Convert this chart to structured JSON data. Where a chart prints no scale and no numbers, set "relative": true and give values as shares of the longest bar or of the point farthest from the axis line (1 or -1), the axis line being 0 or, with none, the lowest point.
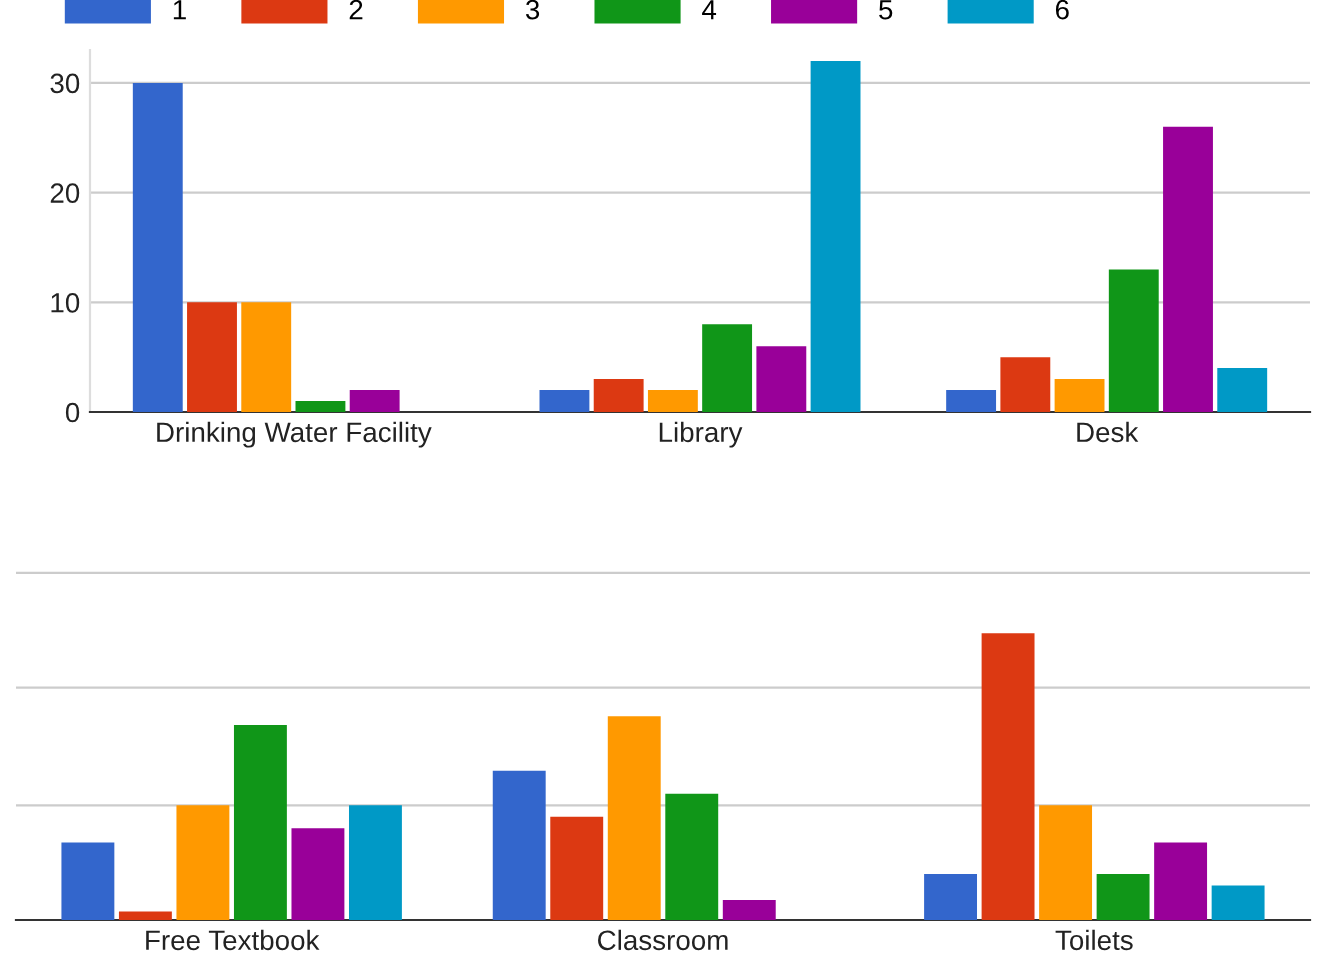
{
  "chart_data": [
    {
      "type": "bar",
      "categories": [
        "Drinking Water Facility",
        "Library",
        "Desk"
      ],
      "series": [
        {
          "name": "1",
          "color": "#3366cc",
          "values": [
            30,
            2,
            2
          ]
        },
        {
          "name": "2",
          "color": "#dc3912",
          "values": [
            10,
            3,
            5
          ]
        },
        {
          "name": "3",
          "color": "#ff9900",
          "values": [
            10,
            2,
            3
          ]
        },
        {
          "name": "4",
          "color": "#109618",
          "values": [
            1,
            8,
            13
          ]
        },
        {
          "name": "5",
          "color": "#990099",
          "values": [
            2,
            6,
            26
          ]
        },
        {
          "name": "6",
          "color": "#0099c6",
          "values": [
            0,
            32,
            4
          ]
        }
      ],
      "ylim": [
        0,
        33
      ],
      "yticks": [
        0,
        10,
        20,
        30
      ],
      "grid": "y",
      "legend": "top left"
    },
    {
      "type": "bar",
      "categories": [
        "Free Textbook",
        "Classroom",
        "Toilets"
      ],
      "series": [
        {
          "color": "#3366cc",
          "values": [
            0.27,
            0.52,
            0.16
          ]
        },
        {
          "color": "#dc3912",
          "values": [
            0.03,
            0.36,
            1
          ]
        },
        {
          "color": "#ff9900",
          "values": [
            0.4,
            0.71,
            0.4
          ]
        },
        {
          "color": "#109618",
          "values": [
            0.68,
            0.44,
            0.16
          ]
        },
        {
          "color": "#990099",
          "values": [
            0.32,
            0.07,
            0.27
          ]
        },
        {
          "color": "#0099c6",
          "values": [
            0.4,
            0,
            0.12
          ]
        }
      ],
      "relative": true,
      "ref_lines": [
        {
          "axis": "y",
          "value": 0.4,
          "color": "#cccccc"
        },
        {
          "axis": "y",
          "value": 0.81,
          "color": "#cccccc"
        },
        {
          "axis": "y",
          "value": 1.21,
          "color": "#cccccc"
        }
      ]
    }
  ]
}
